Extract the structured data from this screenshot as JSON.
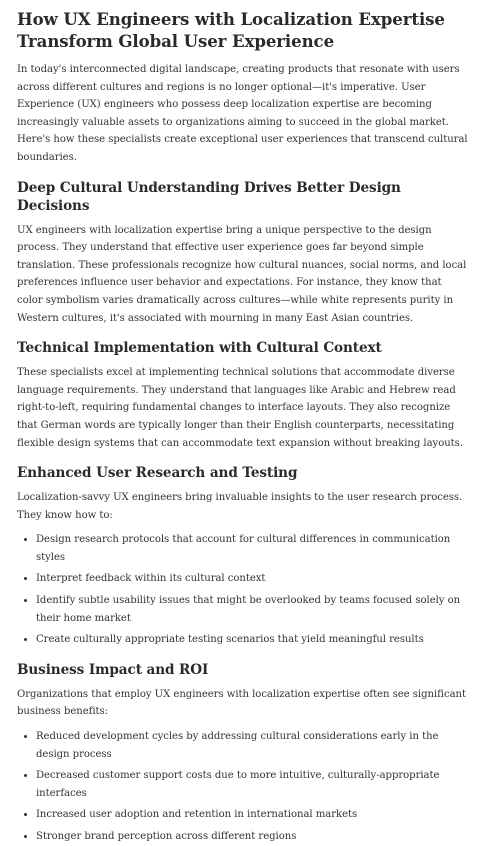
{
  "article": {
    "title": "How UX Engineers with Localization Expertise Transform Global User Experience",
    "intro": "In today's interconnected digital landscape, creating products that resonate with users across different cultures and regions is no longer optional—it's imperative. User Experience (UX) engineers who possess deep localization expertise are becoming increasingly valuable assets to organizations aiming to succeed in the global market. Here's how these specialists create exceptional user experiences that transcend cultural boundaries.",
    "sections": [
      {
        "heading": "Deep Cultural Understanding Drives Better Design Decisions",
        "text": "UX engineers with localization expertise bring a unique perspective to the design process. They understand that effective user experience goes far beyond simple translation. These professionals recognize how cultural nuances, social norms, and local preferences influence user behavior and expectations. For instance, they know that color symbolism varies dramatically across cultures—while white represents purity in Western cultures, it's associated with mourning in many East Asian countries."
      },
      {
        "heading": "Technical Implementation with Cultural Context",
        "text": "These specialists excel at implementing technical solutions that accommodate diverse language requirements. They understand that languages like Arabic and Hebrew read right-to-left, requiring fundamental changes to interface layouts. They also recognize that German words are typically longer than their English counterparts, necessitating flexible design systems that can accommodate text expansion without breaking layouts."
      },
      {
        "heading": "Enhanced User Research and Testing",
        "text": "Localization-savvy UX engineers bring invaluable insights to the user research process. They know how to:",
        "items": [
          "Design research protocols that account for cultural differences in communication styles",
          "Interpret feedback within its cultural context",
          "Identify subtle usability issues that might be overlooked by teams focused solely on their home market",
          "Create culturally appropriate testing scenarios that yield meaningful results"
        ]
      },
      {
        "heading": "Business Impact and ROI",
        "text": "Organizations that employ UX engineers with localization expertise often see significant business benefits:",
        "items": [
          "Reduced development cycles by addressing cultural considerations early in the design process",
          "Decreased customer support costs due to more intuitive, culturally-appropriate interfaces",
          "Increased user adoption and retention in international markets",
          "Stronger brand perception across different regions"
        ]
      }
    ]
  }
}
